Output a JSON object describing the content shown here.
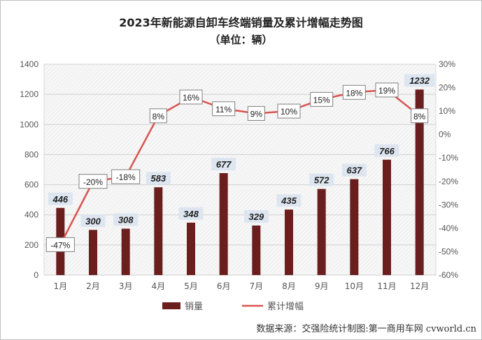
{
  "chart_data": {
    "type": "bar",
    "title": "2023年新能源自卸车终端销量及累计增幅走势图",
    "subtitle": "（单位：辆）",
    "categories": [
      "1月",
      "2月",
      "3月",
      "4月",
      "5月",
      "6月",
      "7月",
      "8月",
      "9月",
      "10月",
      "11月",
      "12月"
    ],
    "series": [
      {
        "name": "销量",
        "type": "bar",
        "axis": "left",
        "color": "#6b1e1e",
        "values": [
          446,
          300,
          308,
          583,
          348,
          677,
          329,
          435,
          572,
          637,
          766,
          1232
        ]
      },
      {
        "name": "累计增幅",
        "type": "line",
        "axis": "right",
        "color": "#d9534f",
        "values": [
          -47,
          -20,
          -18,
          8,
          16,
          11,
          9,
          10,
          15,
          18,
          19,
          8
        ],
        "labels": [
          "-47%",
          "-20%",
          "-18%",
          "8%",
          "16%",
          "11%",
          "9%",
          "10%",
          "15%",
          "18%",
          "19%",
          "8%"
        ]
      }
    ],
    "ylim_left": [
      0,
      1400
    ],
    "yticks_left": [
      "0",
      "200",
      "400",
      "600",
      "800",
      "1000",
      "1200",
      "1400"
    ],
    "ylim_right": [
      -60,
      30
    ],
    "yticks_right": [
      "-60%",
      "-50%",
      "-40%",
      "-30%",
      "-20%",
      "-10%",
      "0%",
      "10%",
      "20%",
      "30%"
    ],
    "legend_position": "bottom",
    "grid": true
  },
  "source": "数据来源：交强险统计制图:第一商用车网 cvworld.cn"
}
